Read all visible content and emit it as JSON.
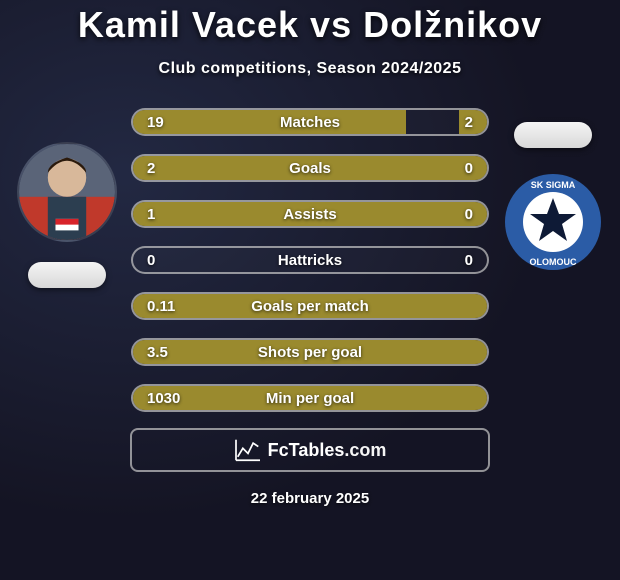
{
  "title": {
    "player1": "Kamil Vacek",
    "vs": "vs",
    "player2": "Dolžnikov"
  },
  "subtitle": "Club competitions, Season 2024/2025",
  "colors": {
    "bar_fill": "#9a8a2e",
    "bar_border": "rgba(200,200,200,0.7)",
    "text": "#f2f2f2",
    "flag_pill": "#e8e8e8",
    "badge_outer": "#2b5ca6",
    "badge_inner": "#ffffff",
    "badge_star": "#0e1a36"
  },
  "date": "22 february 2025",
  "logo_text_left": "Fc",
  "logo_text_right": "Tables",
  "logo_domain": ".com",
  "bars": [
    {
      "label": "Matches",
      "left": "19",
      "right": "2",
      "left_pct": 77,
      "right_pct": 8
    },
    {
      "label": "Goals",
      "left": "2",
      "right": "0",
      "left_pct": 100,
      "right_pct": 0
    },
    {
      "label": "Assists",
      "left": "1",
      "right": "0",
      "left_pct": 100,
      "right_pct": 0
    },
    {
      "label": "Hattricks",
      "left": "0",
      "right": "0",
      "left_pct": 0,
      "right_pct": 0
    },
    {
      "label": "Goals per match",
      "left": "0.11",
      "right": "",
      "left_pct": 100,
      "right_pct": 0
    },
    {
      "label": "Shots per goal",
      "left": "3.5",
      "right": "",
      "left_pct": 100,
      "right_pct": 0
    },
    {
      "label": "Min per goal",
      "left": "1030",
      "right": "",
      "left_pct": 100,
      "right_pct": 0
    }
  ],
  "player1_name": "Kamil Vacek",
  "player2_name": "Dolžnikov"
}
